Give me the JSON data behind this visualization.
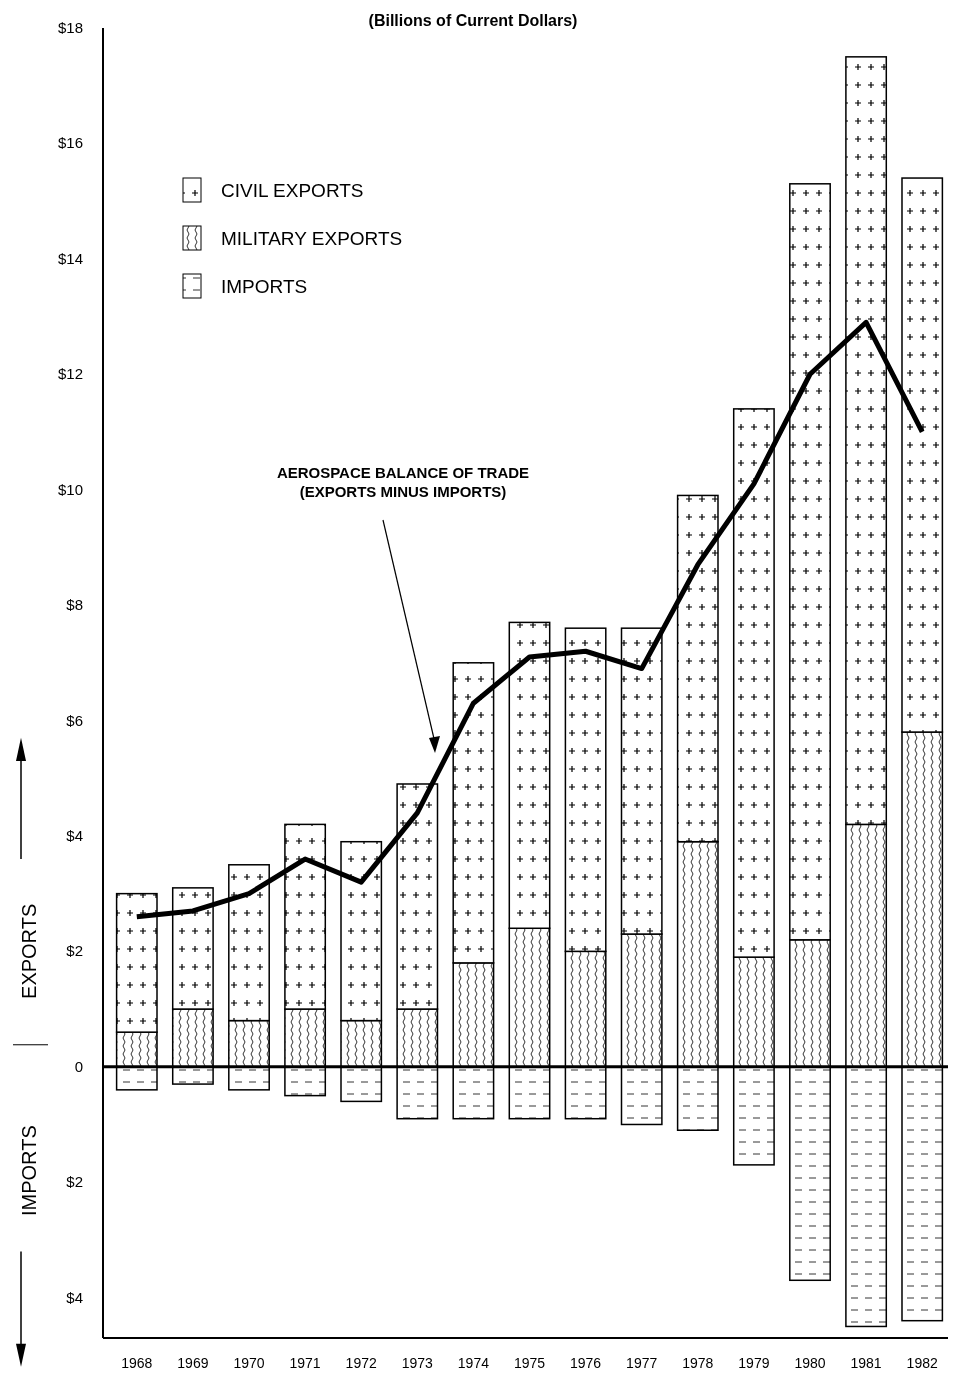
{
  "chart_data": {
    "type": "bar",
    "stacked": true,
    "title": "(Billions of Current Dollars)",
    "ylabel": "EXPORTS",
    "annotations": [
      "AEROSPACE BALANCE OF TRADE\n(EXPORTS MINUS IMPORTS)",
      "IMPORTS"
    ],
    "categories": [
      "1968",
      "1969",
      "1970",
      "1971",
      "1972",
      "1973",
      "1974",
      "1975",
      "1976",
      "1977",
      "1978",
      "1979",
      "1980",
      "1981",
      "1982"
    ],
    "series": [
      {
        "name": "MILITARY EXPORTS",
        "color": "#ffffff",
        "values": [
          0.6,
          1.0,
          0.8,
          1.0,
          0.8,
          1.0,
          1.8,
          2.4,
          2.0,
          2.3,
          3.9,
          1.9,
          2.2,
          4.2,
          5.8
        ]
      },
      {
        "name": "CIVIL EXPORTS",
        "color": "#ffffff",
        "values": [
          2.4,
          2.1,
          2.7,
          3.2,
          3.1,
          3.9,
          5.2,
          5.3,
          5.6,
          5.3,
          6.0,
          9.5,
          13.1,
          13.3,
          9.6
        ]
      },
      {
        "name": "IMPORTS",
        "color": "#ffffff",
        "values": [
          -0.4,
          -0.3,
          -0.4,
          -0.5,
          -0.6,
          -0.9,
          -0.9,
          -0.9,
          -0.9,
          -1.0,
          -1.1,
          -1.7,
          -3.7,
          -4.5,
          -4.4
        ]
      },
      {
        "type": "line",
        "color": "#000000",
        "values": [
          2.6,
          2.7,
          3.0,
          3.6,
          3.2,
          4.4,
          6.3,
          7.1,
          7.2,
          6.9,
          8.7,
          10.1,
          12.0,
          12.9,
          11.0
        ]
      }
    ],
    "ylim": [
      -4.7,
      18
    ],
    "yticks": [
      {
        "value": 18,
        "label": "$18"
      },
      {
        "value": 16,
        "label": "$16"
      },
      {
        "value": 14,
        "label": "$14"
      },
      {
        "value": 12,
        "label": "$12"
      },
      {
        "value": 10,
        "label": "$10"
      },
      {
        "value": 8,
        "label": "$8"
      },
      {
        "value": 6,
        "label": "$6"
      },
      {
        "value": 4,
        "label": "$4"
      },
      {
        "value": 2,
        "label": "$2"
      },
      0,
      {
        "value": -2,
        "label": "$2"
      },
      {
        "value": -4,
        "label": "$4"
      }
    ],
    "legend": "top left"
  }
}
